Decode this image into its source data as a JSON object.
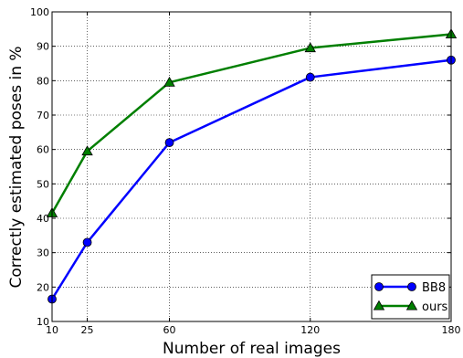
{
  "chart_data": {
    "type": "line",
    "title": "",
    "xlabel": "Number of real images",
    "ylabel": "Correctly estimated poses in %",
    "x": [
      10,
      25,
      60,
      120,
      180
    ],
    "x_ticks": [
      "10",
      "25",
      "60",
      "120",
      "180"
    ],
    "y_ticks": [
      "10",
      "20",
      "30",
      "40",
      "50",
      "60",
      "70",
      "80",
      "90",
      "100"
    ],
    "xlim": [
      10,
      180
    ],
    "ylim": [
      10,
      100
    ],
    "grid": true,
    "legend_position": "bottom-right",
    "series": [
      {
        "name": "BB8",
        "values": [
          16.5,
          33,
          62,
          81,
          86
        ],
        "color": "#0000ff",
        "marker": "circle"
      },
      {
        "name": "ours",
        "values": [
          41.5,
          59.5,
          79.5,
          89.5,
          93.5
        ],
        "color": "#007f00",
        "marker": "triangle"
      }
    ]
  }
}
